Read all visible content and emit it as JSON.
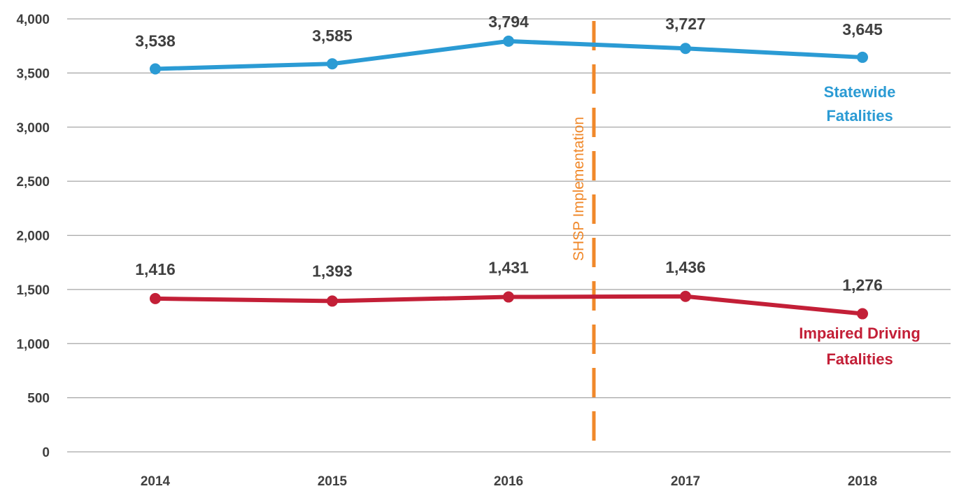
{
  "chart_data": {
    "type": "line",
    "title": "",
    "xlabel": "",
    "ylabel": "",
    "categories": [
      "2014",
      "2015",
      "2016",
      "2017",
      "2018"
    ],
    "ylim": [
      0,
      4000
    ],
    "y_ticks": [
      0,
      500,
      1000,
      1500,
      2000,
      2500,
      3000,
      3500,
      4000
    ],
    "y_tick_labels": [
      "0",
      "500",
      "1,000",
      "1,500",
      "2,000",
      "2,500",
      "3,000",
      "3,500",
      "4,000"
    ],
    "grid": "horizontal",
    "series": [
      {
        "name_lines": [
          "Statewide",
          "Fatalities"
        ],
        "color": "#2b9bd4",
        "values": [
          3538,
          3585,
          3794,
          3727,
          3645
        ],
        "value_labels": [
          "3,538",
          "3,585",
          "3,794",
          "3,727",
          "3,645"
        ]
      },
      {
        "name_lines": [
          "Impaired Driving",
          "Fatalities"
        ],
        "color": "#c31f37",
        "values": [
          1416,
          1393,
          1431,
          1436,
          1276
        ],
        "value_labels": [
          "1,416",
          "1,393",
          "1,431",
          "1,436",
          "1,276"
        ]
      }
    ],
    "annotations": [
      {
        "text": "SHSP Implementation",
        "between": [
          "2016",
          "2017"
        ],
        "color": "#f0882a",
        "style": "dashed vertical line"
      }
    ]
  }
}
